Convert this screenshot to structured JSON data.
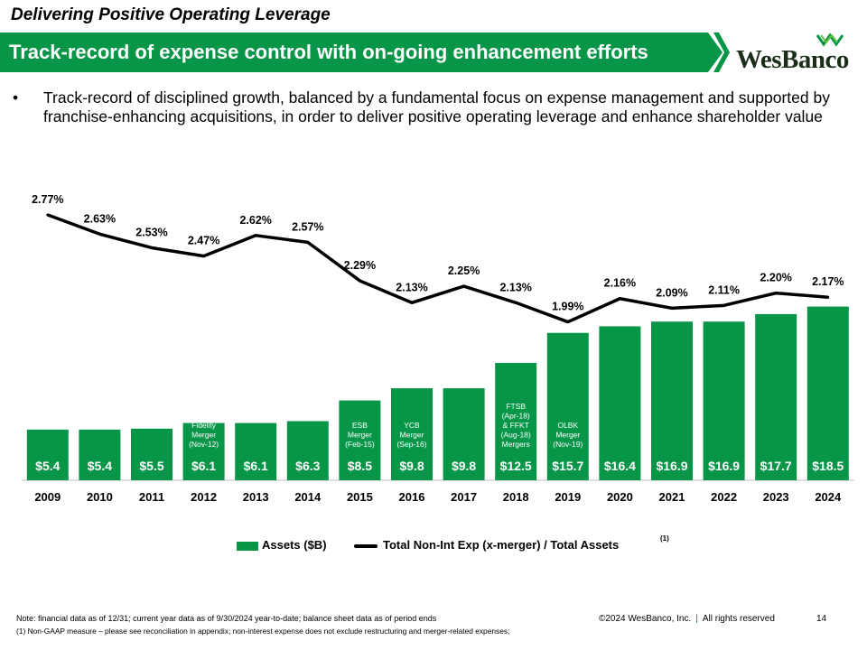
{
  "header": {
    "section": "Delivering Positive Operating Leverage",
    "title": "Track-record of expense control with on-going enhancement efforts",
    "logo": "WesBanco"
  },
  "bullet": {
    "marker": "•",
    "text": "Track-record of disciplined growth, balanced by a fundamental  focus on expense management  and supported by franchise-enhancing  acquisitions, in order to deliver positive operating leverage and enhance shareholder value"
  },
  "chart_data": {
    "type": "bar+line",
    "categories": [
      "2009",
      "2010",
      "2011",
      "2012",
      "2013",
      "2014",
      "2015",
      "2016",
      "2017",
      "2018",
      "2019",
      "2020",
      "2021",
      "2022",
      "2023",
      "2024"
    ],
    "series": [
      {
        "name": "Assets ($B)",
        "type": "bar",
        "color": "#079648",
        "values": [
          5.4,
          5.4,
          5.5,
          6.1,
          6.1,
          6.3,
          8.5,
          9.8,
          9.8,
          12.5,
          15.7,
          16.4,
          16.9,
          16.9,
          17.7,
          18.5
        ],
        "labels": [
          "$5.4",
          "$5.4",
          "$5.5",
          "$6.1",
          "$6.1",
          "$6.3",
          "$8.5",
          "$9.8",
          "$9.8",
          "$12.5",
          "$15.7",
          "$16.4",
          "$16.9",
          "$16.9",
          "$17.7",
          "$18.5"
        ]
      },
      {
        "name": "Total Non-Int Exp (x-merger) / Total Assets",
        "type": "line",
        "color": "#000000",
        "values": [
          2.77,
          2.63,
          2.53,
          2.47,
          2.62,
          2.57,
          2.29,
          2.13,
          2.25,
          2.13,
          1.99,
          2.16,
          2.09,
          2.11,
          2.2,
          2.17
        ],
        "labels": [
          "2.77%",
          "2.63%",
          "2.53%",
          "2.47%",
          "2.62%",
          "2.57%",
          "2.29%",
          "2.13%",
          "2.25%",
          "2.13%",
          "1.99%",
          "2.16%",
          "2.09%",
          "2.11%",
          "2.20%",
          "2.17%"
        ]
      }
    ],
    "annotations": [
      {
        "category": "2012",
        "lines": [
          "Fidelity",
          "Merger",
          "(Nov-12)"
        ]
      },
      {
        "category": "2015",
        "lines": [
          "ESB",
          "Merger",
          "(Feb-15)"
        ]
      },
      {
        "category": "2016",
        "lines": [
          "YCB",
          "Merger",
          "(Sep-16)"
        ]
      },
      {
        "category": "2018",
        "lines": [
          "FTSB",
          "(Apr-18)",
          "& FFKT",
          "(Aug-18)",
          "Mergers"
        ]
      },
      {
        "category": "2019",
        "lines": [
          "OLBK",
          "Merger",
          "(Nov-19)"
        ]
      }
    ],
    "legend_footnote": "(1)",
    "title": ""
  },
  "footer": {
    "note1": "Note:  financial data as of 12/31; current year data as of 9/30/2024 year-to-date; balance sheet data as of period ends",
    "note2": "(1) Non-GAAP measure – please see reconciliation in appendix; non-interest expense does not exclude restructuring and merger-related expenses;",
    "copyright": "©2024 WesBanco, Inc.",
    "rights": "All rights reserved",
    "separator": "|",
    "page": "14"
  }
}
